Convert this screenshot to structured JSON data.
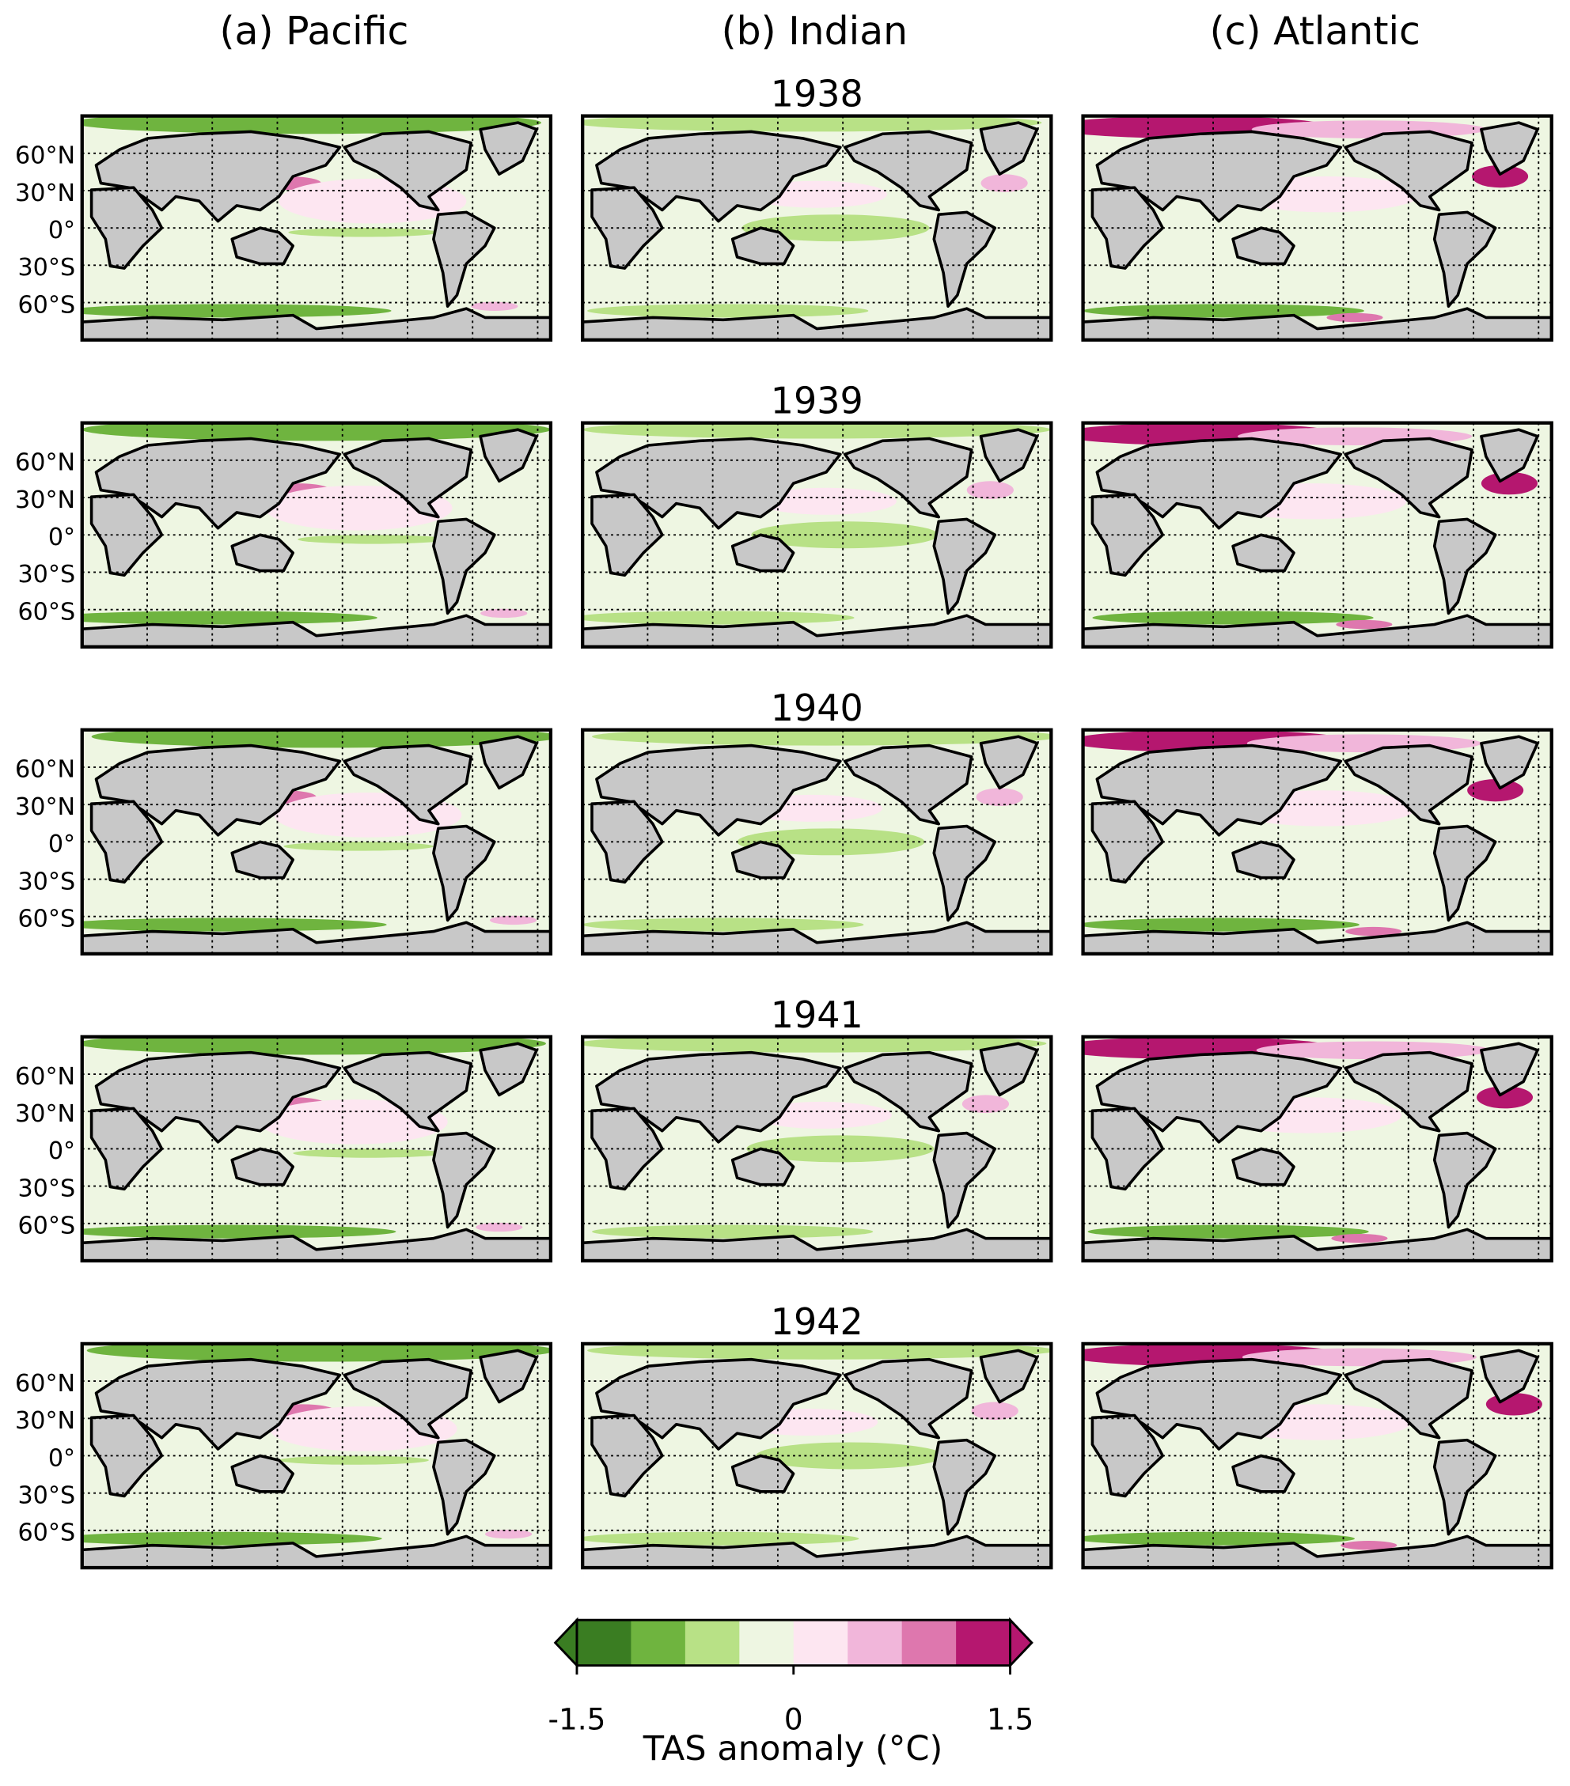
{
  "columns": [
    "(a) Pacific",
    "(b) Indian",
    "(c) Atlantic"
  ],
  "rows": [
    "1938",
    "1939",
    "1940",
    "1941",
    "1942"
  ],
  "map": {
    "ylim": [
      -90,
      90
    ],
    "yticks": [
      {
        "value": 60,
        "label": "60°N"
      },
      {
        "value": 30,
        "label": "30°N"
      },
      {
        "value": 0,
        "label": "0°"
      },
      {
        "value": -30,
        "label": "30°S"
      },
      {
        "value": -60,
        "label": "60°S"
      }
    ],
    "xlim": [
      -20,
      340
    ],
    "xticks": [
      30,
      80,
      130,
      180,
      230,
      280,
      330
    ],
    "grid": true
  },
  "colorbar": {
    "label": "TAS anomaly (°C)",
    "lim": [
      -1.5,
      1.5
    ],
    "ticks": [
      -1.5,
      0,
      1.5
    ],
    "colors": [
      "#3a7d22",
      "#6fb43f",
      "#b8e186",
      "#eef6e2",
      "#fde6f1",
      "#f1b6da",
      "#de77ae",
      "#b5176f"
    ],
    "extend_colors": [
      "#3a7d22",
      "#b5176f"
    ]
  }
}
